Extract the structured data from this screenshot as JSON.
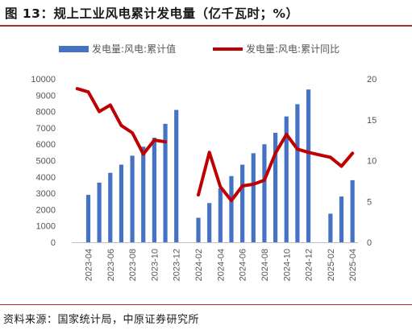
{
  "title": "图 13：规上工业风电累计发电量（亿千瓦时；%）",
  "source": "资料来源：国家统计局，中原证券研究所",
  "colors": {
    "bar": "#4472C4",
    "line": "#C00000",
    "accent": "#b22a2a"
  },
  "chart_data": {
    "type": "bar",
    "title": "",
    "categories": [
      "2023-03",
      "2023-04",
      "2023-05",
      "2023-06",
      "2023-07",
      "2023-08",
      "2023-09",
      "2023-10",
      "2023-11",
      "2023-12",
      "2024-01",
      "2024-02",
      "2024-03",
      "2024-04",
      "2024-05",
      "2024-06",
      "2024-07",
      "2024-08",
      "2024-09",
      "2024-10",
      "2024-11",
      "2024-12",
      "2025-01",
      "2025-02",
      "2025-03",
      "2025-04"
    ],
    "x_tick_labels": [
      "2023-04",
      "2023-06",
      "2023-08",
      "2023-10",
      "2023-12",
      "2024-02",
      "2024-04",
      "2024-06",
      "2024-08",
      "2024-10",
      "2024-12",
      "2025-02",
      "2025-04"
    ],
    "series": [
      {
        "name": "发电量:风电:累计值",
        "type": "bar",
        "axis": "left",
        "values": [
          null,
          2900,
          3650,
          4250,
          4750,
          5300,
          5850,
          6400,
          7250,
          8100,
          null,
          1500,
          2400,
          3300,
          4050,
          4750,
          5450,
          6000,
          6700,
          7700,
          8450,
          9350,
          null,
          1750,
          2800,
          3800
        ]
      },
      {
        "name": "发电量:风电:累计同比",
        "type": "line",
        "axis": "right",
        "values": [
          18.8,
          18.4,
          16.0,
          16.8,
          14.3,
          13.4,
          10.8,
          12.5,
          12.3,
          null,
          null,
          5.8,
          11.0,
          6.8,
          5.1,
          6.9,
          7.1,
          7.6,
          10.9,
          13.2,
          11.4,
          11.0,
          10.7,
          10.4,
          9.3,
          10.9
        ]
      }
    ],
    "y_left": {
      "min": 0,
      "max": 10000,
      "ticks": [
        0,
        1000,
        2000,
        3000,
        4000,
        5000,
        6000,
        7000,
        8000,
        9000,
        10000
      ]
    },
    "y_right": {
      "min": 0,
      "max": 20,
      "ticks": [
        0,
        5,
        10,
        15,
        20
      ]
    },
    "legend_position": "top",
    "grid": false
  }
}
